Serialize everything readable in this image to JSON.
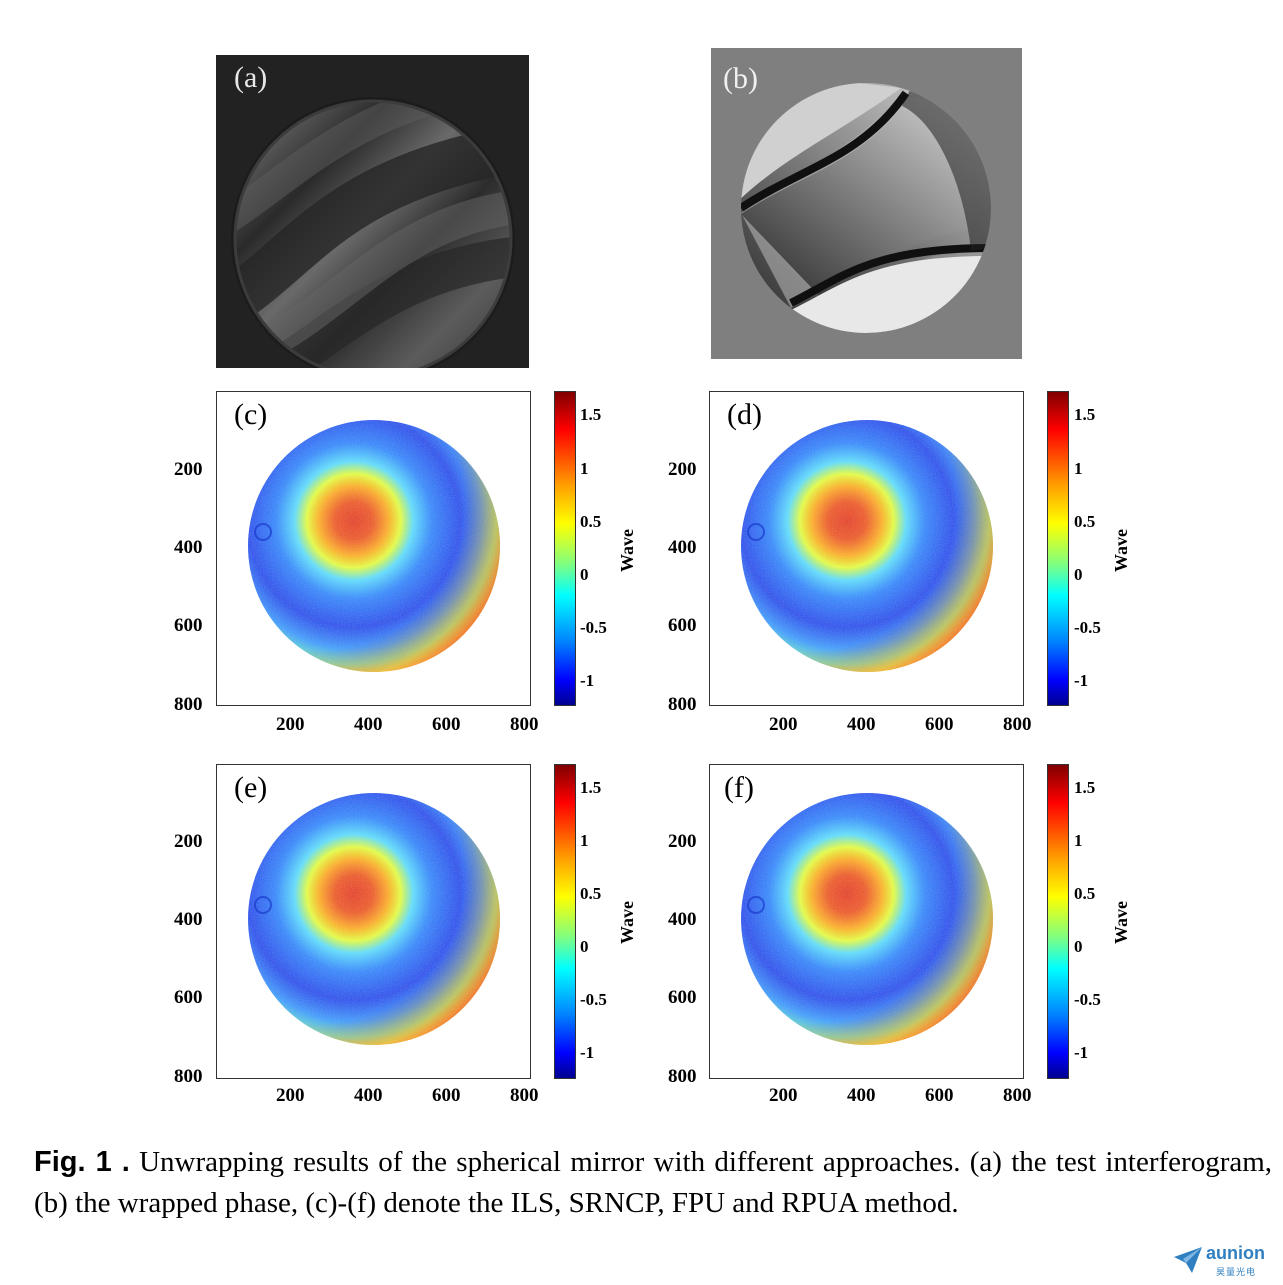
{
  "figure": {
    "panels": [
      {
        "id": "a",
        "label": "(a)",
        "kind": "interferogram"
      },
      {
        "id": "b",
        "label": "(b)",
        "kind": "wrapped-phase"
      },
      {
        "id": "c",
        "label": "(c)",
        "kind": "unwrapped"
      },
      {
        "id": "d",
        "label": "(d)",
        "kind": "unwrapped"
      },
      {
        "id": "e",
        "label": "(e)",
        "kind": "unwrapped"
      },
      {
        "id": "f",
        "label": "(f)",
        "kind": "unwrapped"
      }
    ],
    "x_ticks": [
      "200",
      "400",
      "600",
      "800"
    ],
    "y_ticks": [
      "200",
      "400",
      "600",
      "800"
    ],
    "colorbar": {
      "ticks": [
        "1.5",
        "1",
        "0.5",
        "0",
        "-0.5",
        "-1"
      ],
      "unit": "Wave",
      "range": [
        -1.25,
        1.75
      ],
      "colormap": "jet"
    }
  },
  "caption": {
    "fig_label": "Fig. 1 .",
    "text": "Unwrapping results of the spherical mirror with different approaches. (a) the test interferogram, (b) the wrapped phase, (c)-(f) denote the ILS, SRNCP, FPU and RPUA method."
  },
  "watermark": {
    "brand": "aunion",
    "sub": "昊量光电",
    "color": "#2f7fc1"
  }
}
